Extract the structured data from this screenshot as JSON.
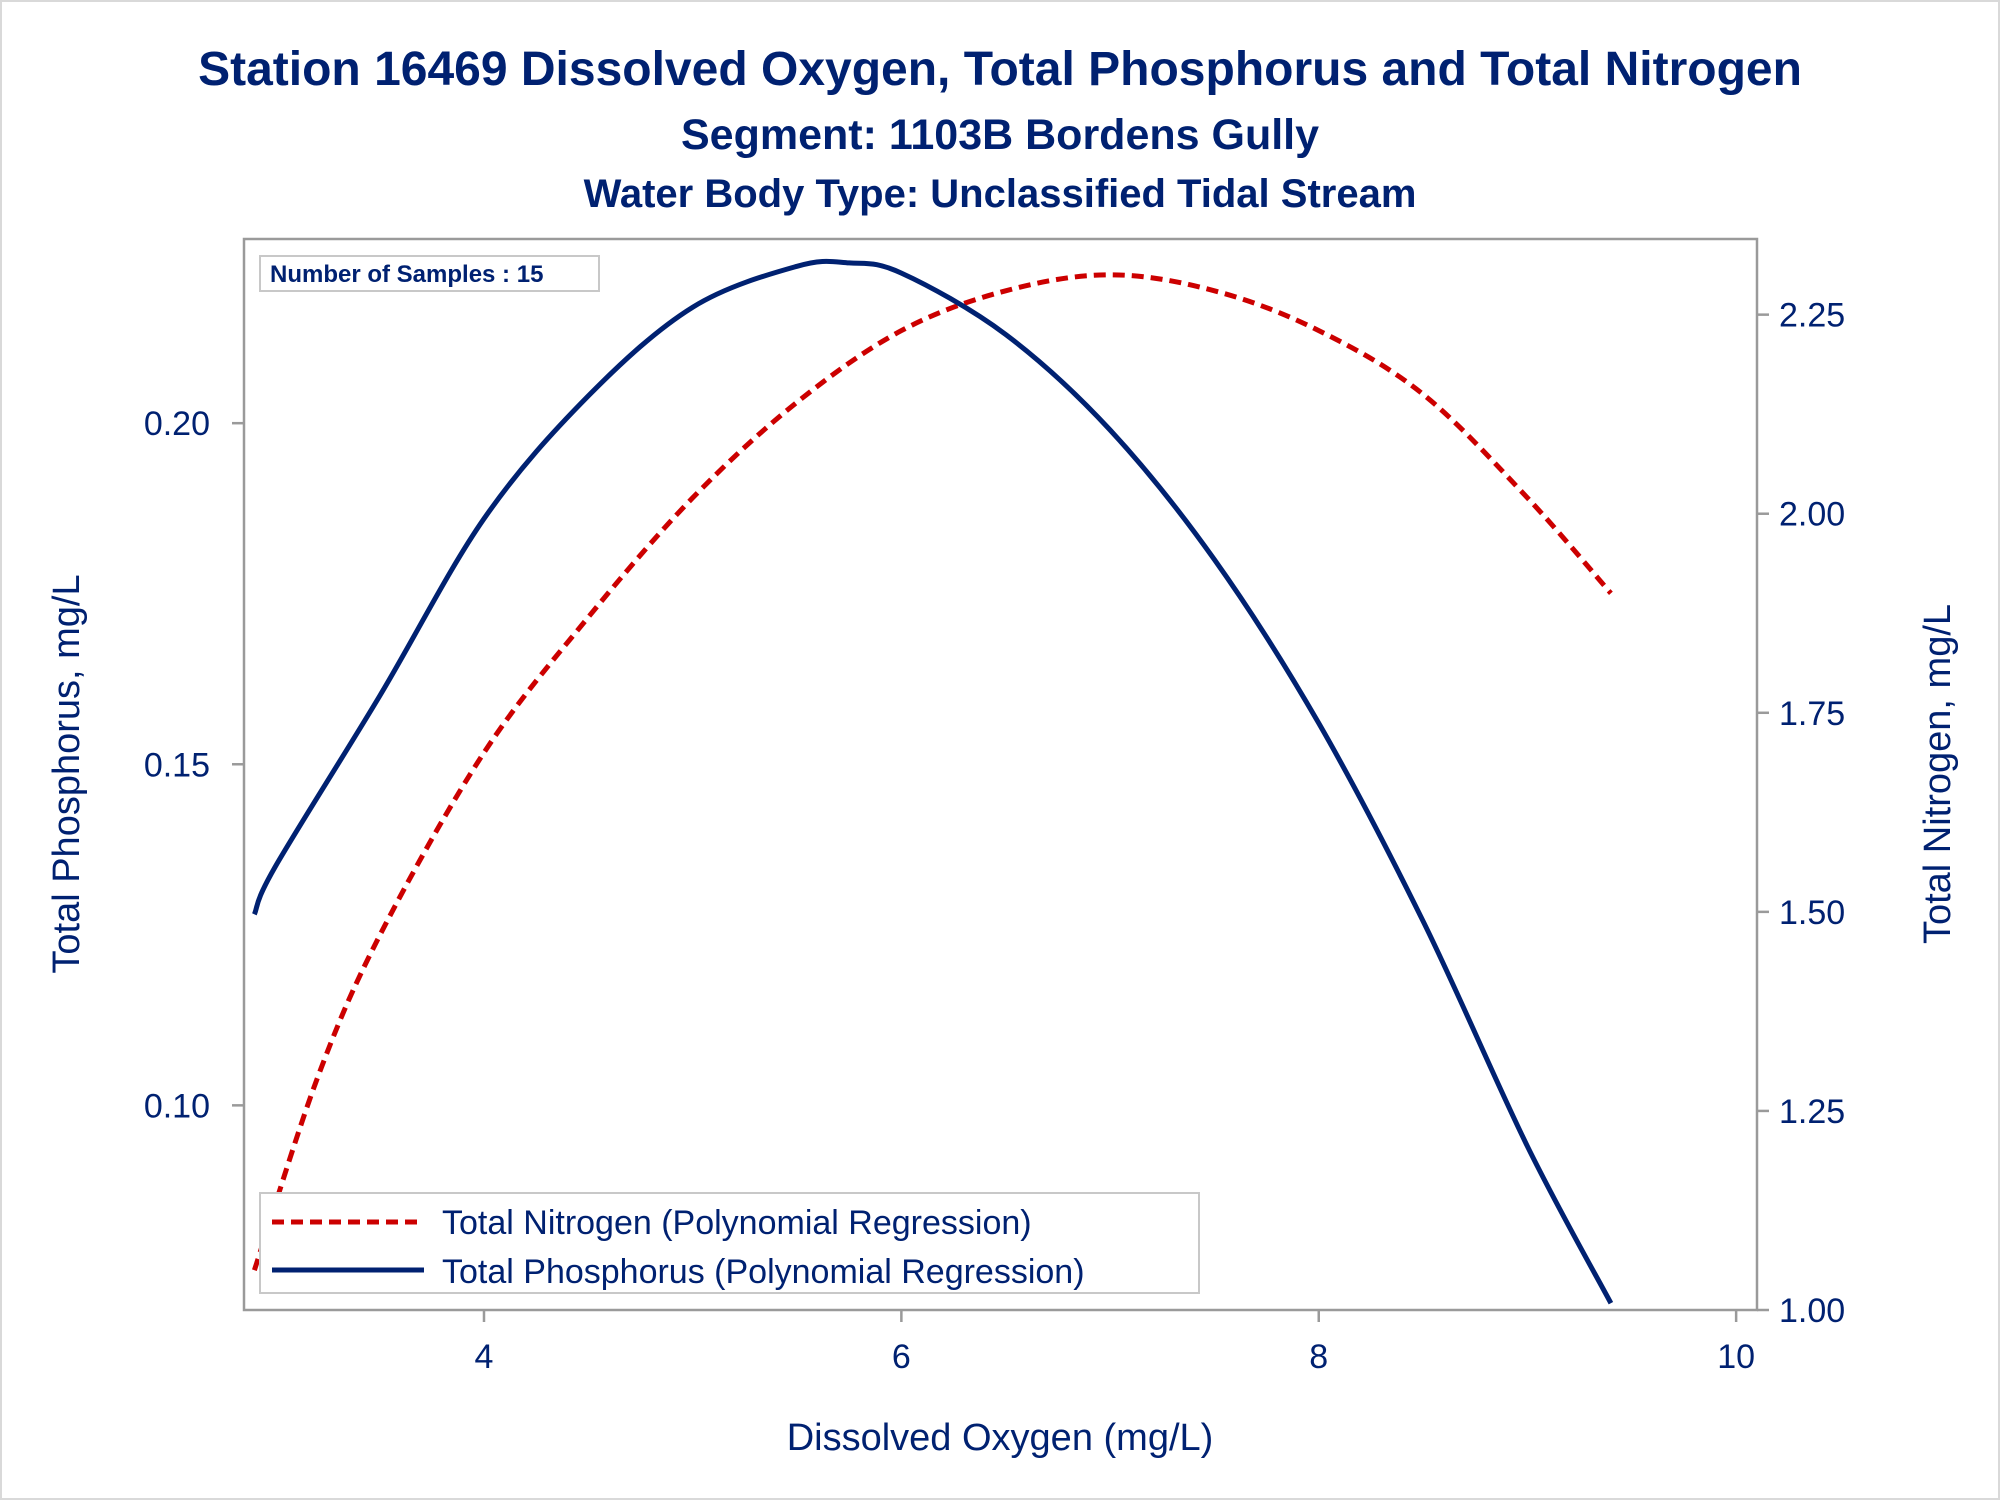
{
  "chart_data": {
    "type": "line",
    "title": "Station 16469  Dissolved Oxygen, Total Phosphorus and Total Nitrogen",
    "subtitle": "Segment: 1103B  Bordens Gully",
    "subtitle2": "Water Body Type: Unclassified Tidal Stream",
    "xlabel": "Dissolved Oxygen (mg/L)",
    "ylabel": "Total Phosphorus, mg/L",
    "y2label": "Total Nitrogen, mg/L",
    "xlim": [
      2.85,
      10.1
    ],
    "ylim": [
      0.07,
      0.227
    ],
    "y2lim": [
      1.0,
      2.345
    ],
    "xticks": [
      4,
      6,
      8,
      10
    ],
    "xtick_labels": [
      "4",
      "6",
      "8",
      "10"
    ],
    "yticks": [
      0.1,
      0.15,
      0.2
    ],
    "ytick_labels": [
      "0.10",
      "0.15",
      "0.20"
    ],
    "y2ticks": [
      1.0,
      1.25,
      1.5,
      1.75,
      2.0,
      2.25
    ],
    "y2tick_labels": [
      "1.00",
      "1.25",
      "1.50",
      "1.75",
      "2.00",
      "2.25"
    ],
    "inset_text": "Number of Samples : 15",
    "grid": false,
    "legend_position": "bottom-left",
    "series": [
      {
        "name": "Total Nitrogen (Polynomial Regression)",
        "axis": "right",
        "style": "dashed",
        "color": "#cc0000",
        "x": [
          2.9,
          3.2,
          3.5,
          4.0,
          4.5,
          5.0,
          5.5,
          6.0,
          6.5,
          7.0,
          7.5,
          8.0,
          8.5,
          9.0,
          9.4
        ],
        "values": [
          1.05,
          1.29,
          1.47,
          1.7,
          1.87,
          2.02,
          2.14,
          2.23,
          2.28,
          2.3,
          2.28,
          2.23,
          2.15,
          2.02,
          1.9
        ]
      },
      {
        "name": "Total Phosphorus (Polynomial Regression)",
        "axis": "left",
        "style": "solid",
        "color": "#002171",
        "x": [
          2.9,
          3.0,
          3.5,
          4.0,
          4.5,
          5.0,
          5.5,
          5.75,
          6.0,
          6.5,
          7.0,
          7.5,
          8.0,
          8.5,
          9.0,
          9.4
        ],
        "values": [
          0.128,
          0.135,
          0.16,
          0.186,
          0.204,
          0.217,
          0.223,
          0.2235,
          0.222,
          0.213,
          0.199,
          0.18,
          0.156,
          0.127,
          0.094,
          0.071
        ]
      }
    ]
  }
}
